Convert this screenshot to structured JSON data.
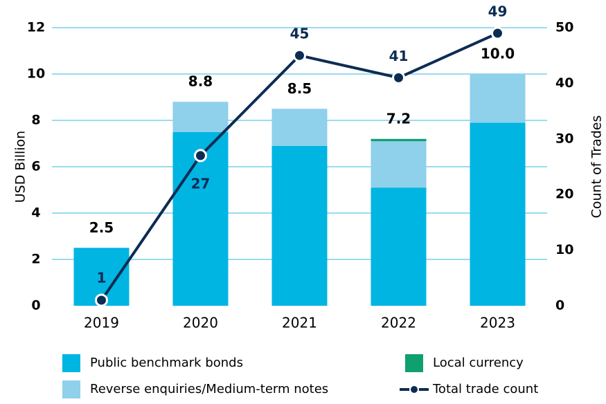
{
  "chart_data": {
    "type": "bar",
    "categories": [
      "2019",
      "2020",
      "2021",
      "2022",
      "2023"
    ],
    "series": [
      {
        "name": "Public benchmark bonds",
        "color": "#00b5e2",
        "values": [
          2.5,
          7.5,
          6.9,
          5.1,
          7.9
        ]
      },
      {
        "name": "Reverse enquiries/Medium-term notes",
        "color": "#8fd0eb",
        "values": [
          0,
          1.3,
          1.6,
          2.0,
          2.1
        ]
      },
      {
        "name": "Local currency",
        "color": "#10a070",
        "values": [
          0,
          0,
          0,
          0.1,
          0
        ]
      },
      {
        "name": "Total trade count",
        "color": "#0d2c54",
        "type": "line",
        "axis": "y2",
        "values": [
          1,
          27,
          45,
          41,
          49
        ]
      }
    ],
    "totals": [
      2.5,
      8.8,
      8.5,
      7.2,
      10.0
    ],
    "total_labels": [
      "2.5",
      "8.8",
      "8.5",
      "7.2",
      "10.0"
    ],
    "ylabel": "USD Billion",
    "y2label": "Count of Trades",
    "ylim": [
      0,
      12
    ],
    "yticks": [
      0,
      2,
      4,
      6,
      8,
      10,
      12
    ],
    "y2lim": [
      0,
      50
    ],
    "y2ticks": [
      0,
      10,
      20,
      30,
      40,
      50
    ],
    "grid": true,
    "legend": "bottom"
  }
}
